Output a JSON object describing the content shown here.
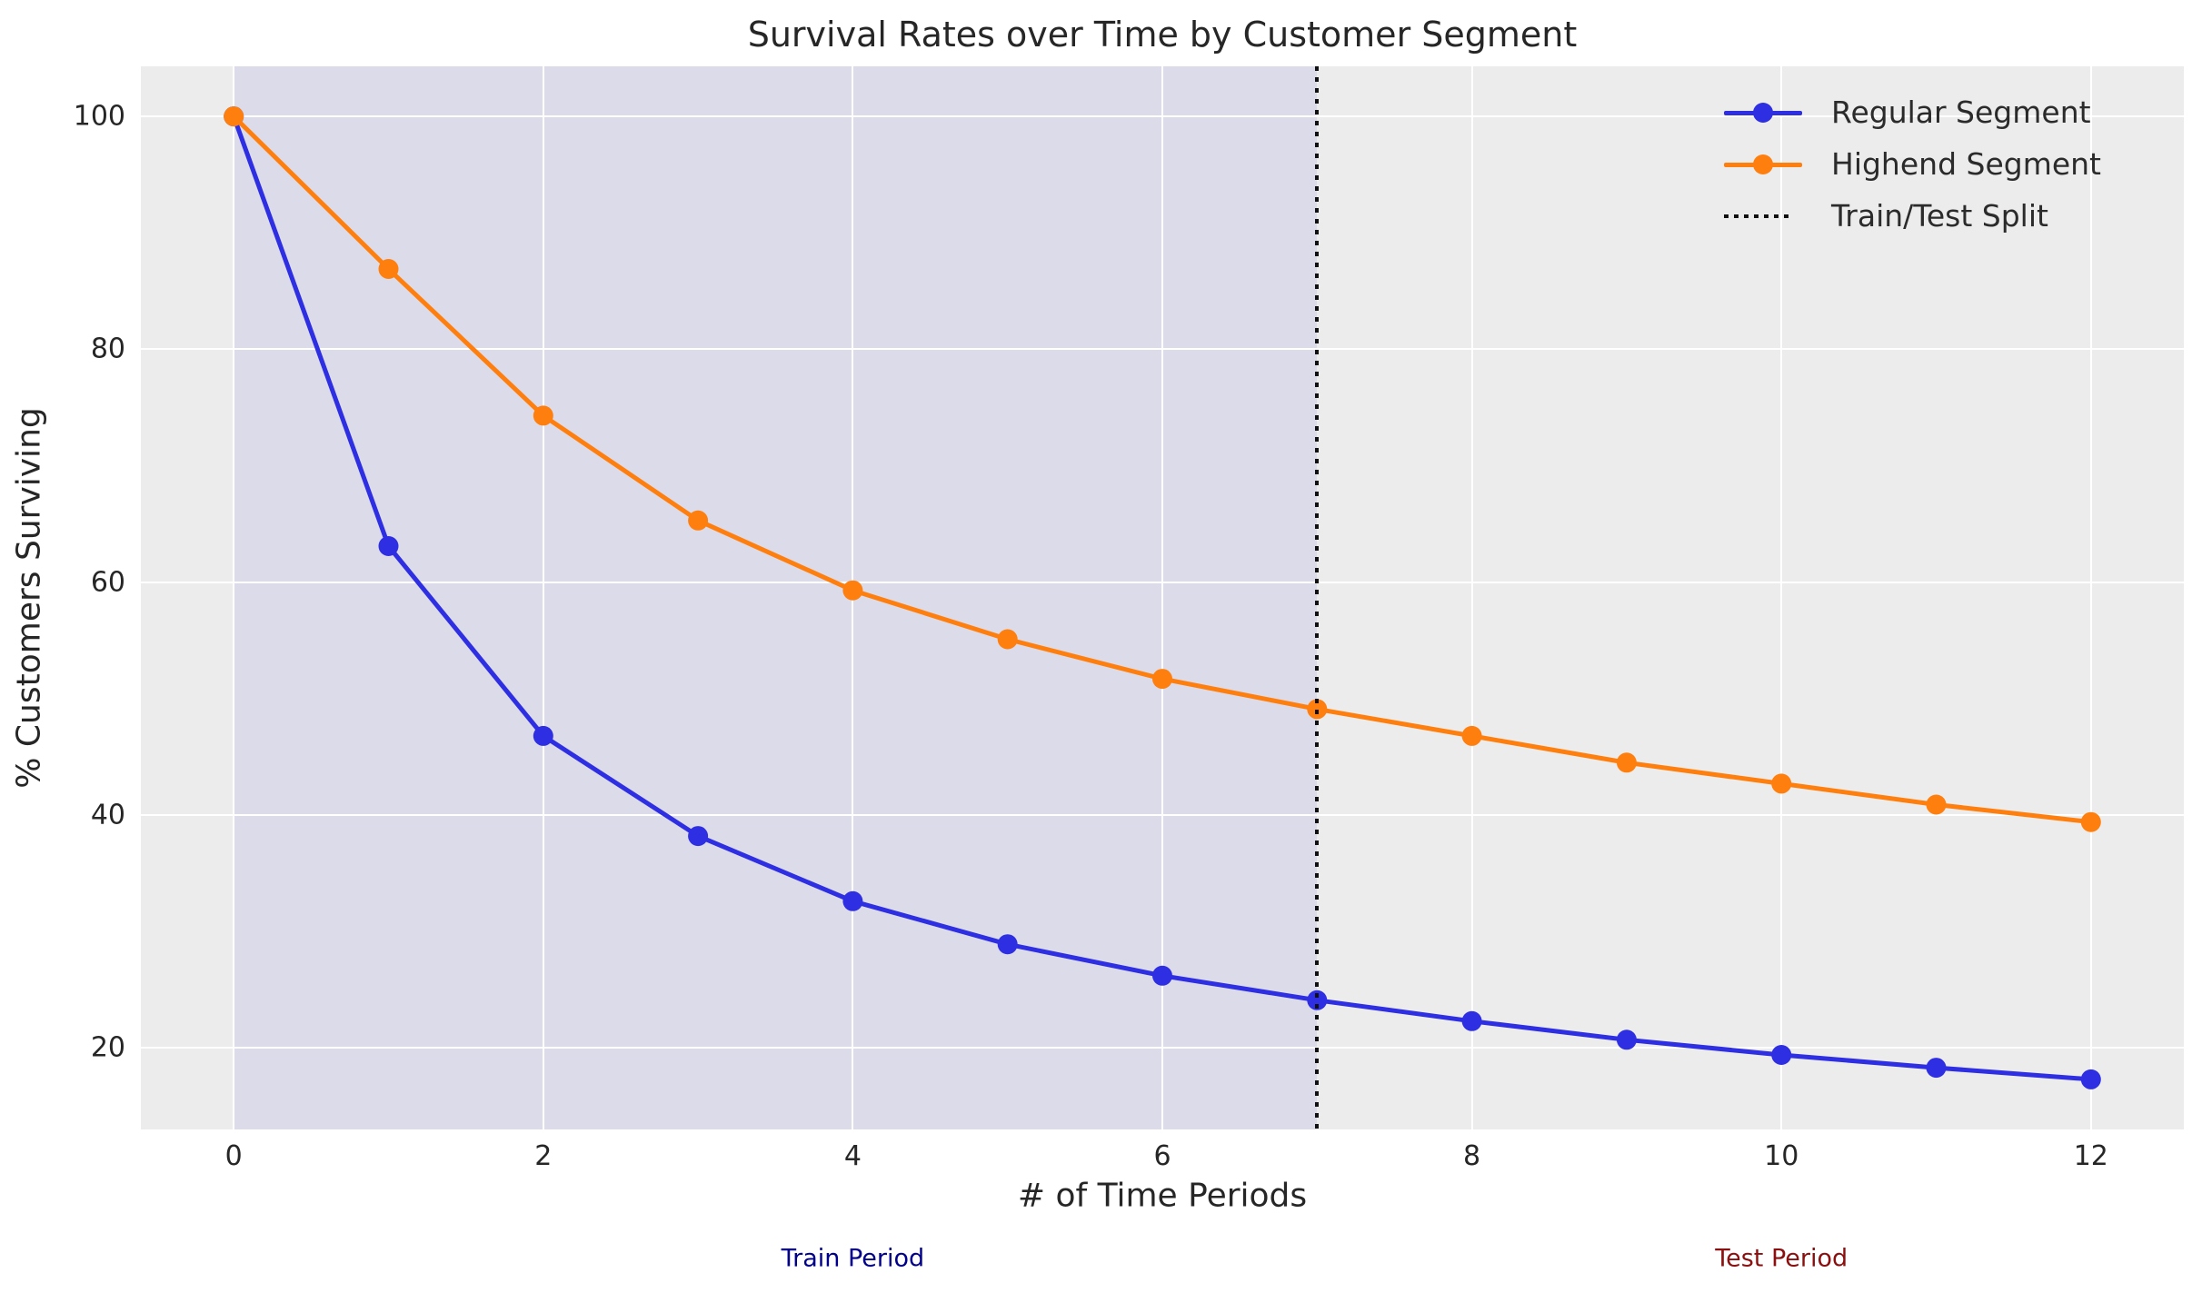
{
  "title": "Survival Rates over Time by Customer Segment",
  "xlabel": "# of Time Periods",
  "ylabel": "% Customers Surviving",
  "legend": {
    "position": "upper right",
    "entries": [
      {
        "label": "Regular Segment",
        "marker": "line-dot",
        "color": "#2e2ee2"
      },
      {
        "label": "Highend Segment",
        "marker": "line-dot",
        "color": "#ff7f0e"
      },
      {
        "label": "Train/Test Split",
        "marker": "dotted",
        "color": "#111111"
      }
    ]
  },
  "annotations": [
    {
      "text": "Train Period",
      "color": "#00008b",
      "x": 4
    },
    {
      "text": "Test Period",
      "color": "#8b0f0f",
      "x": 10
    }
  ],
  "chart_data": {
    "type": "line",
    "x": [
      0,
      1,
      2,
      3,
      4,
      5,
      6,
      7,
      8,
      9,
      10,
      11,
      12
    ],
    "series": [
      {
        "name": "Regular Segment",
        "color": "#2e2ee2",
        "values": [
          100.0,
          63.1,
          46.8,
          38.2,
          32.6,
          28.9,
          26.2,
          24.1,
          22.3,
          20.7,
          19.4,
          18.3,
          17.3
        ]
      },
      {
        "name": "Highend Segment",
        "color": "#ff7f0e",
        "values": [
          100.0,
          86.9,
          74.3,
          65.3,
          59.3,
          55.1,
          51.7,
          49.1,
          46.8,
          44.5,
          42.7,
          40.9,
          39.4
        ]
      }
    ],
    "split_line_x": 7,
    "train_span": [
      0,
      7
    ],
    "xticks": [
      0,
      2,
      4,
      6,
      8,
      10,
      12
    ],
    "yticks": [
      20,
      40,
      60,
      80,
      100
    ],
    "xlim": [
      -0.6,
      12.6
    ],
    "ylim": [
      13.0,
      104.3
    ],
    "grid": true,
    "colors": {
      "axes_bg": "#ececec",
      "train_span_bg": "#dbdbe9",
      "grid": "#ffffff",
      "split_line": "#111111",
      "text": "#262626"
    }
  }
}
